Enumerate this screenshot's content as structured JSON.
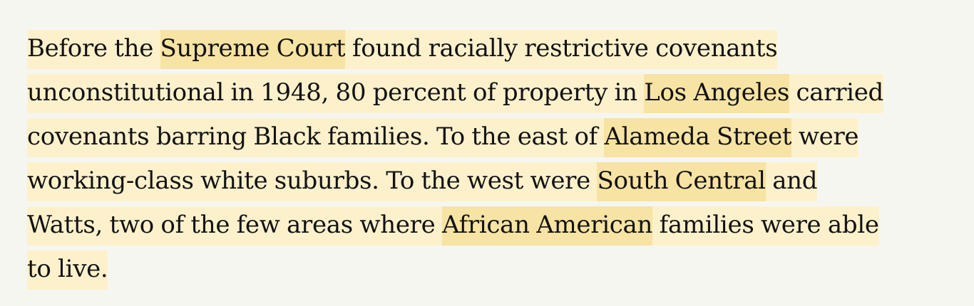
{
  "colors": {
    "page_background": "#f6f6f1",
    "text": "#121212",
    "highlight_light": "#fdf1cc",
    "highlight_entity": "#f7e3a3"
  },
  "paragraph": {
    "lines": [
      [
        {
          "text": "Before the ",
          "style": "light"
        },
        {
          "text": "Supreme Court",
          "style": "entity",
          "name": "entity-supreme-court"
        },
        {
          "text": " found racially restrictive covenants",
          "style": "light"
        }
      ],
      [
        {
          "text": "unconstitutional in 1948, 80 percent of property in ",
          "style": "light"
        },
        {
          "text": "Los Angeles",
          "style": "entity",
          "name": "entity-los-angeles"
        },
        {
          "text": " carried",
          "style": "light"
        }
      ],
      [
        {
          "text": "covenants barring Black families. To the east of ",
          "style": "light"
        },
        {
          "text": "Alameda Street",
          "style": "entity",
          "name": "entity-alameda-street"
        },
        {
          "text": " were",
          "style": "light"
        }
      ],
      [
        {
          "text": "working-class white suburbs. To the west were ",
          "style": "light"
        },
        {
          "text": "South Central",
          "style": "entity",
          "name": "entity-south-central"
        },
        {
          "text": " and",
          "style": "light"
        }
      ],
      [
        {
          "text": "Watts, two of the few areas where ",
          "style": "light"
        },
        {
          "text": "African American",
          "style": "entity",
          "name": "entity-african-american"
        },
        {
          "text": " families were able",
          "style": "light"
        }
      ],
      [
        {
          "text": "to live.",
          "style": "light"
        }
      ]
    ]
  }
}
